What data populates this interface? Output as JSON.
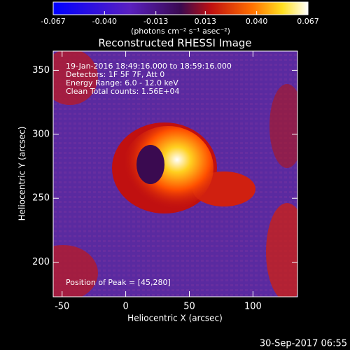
{
  "chart_data": {
    "type": "image",
    "title": "Reconstructed RHESSI Image",
    "colorbar": {
      "lim": [
        -0.067,
        0.067
      ],
      "ticks": [
        -0.067,
        {
          "value": -0.04,
          "label": "-0.040"
        },
        -0.013,
        0.013,
        {
          "value": 0.04,
          "label": "0.040"
        },
        0.067
      ],
      "units": "(photons cm⁻² s⁻¹ asec⁻²)"
    },
    "annotations": [
      "19-Jan-2016 18:49:16.000 to 18:59:16.000",
      "Detectors: 1F 5F 7F, Att 0",
      "Energy Range: 6.0 - 12.0 keV",
      "Clean     Total counts: 1.56E+04"
    ],
    "peak_label": "Position of Peak = [45,280]",
    "xlabel": "Heliocentric X (arcsec)",
    "ylabel": "Heliocentric Y (arcsec)",
    "xlim": [
      -57,
      135
    ],
    "ylim": [
      173,
      365
    ],
    "xticks": [
      -50,
      0,
      50,
      100
    ],
    "yticks": [
      200,
      250,
      300,
      350
    ],
    "footer": "30-Sep-2017 06:55"
  }
}
